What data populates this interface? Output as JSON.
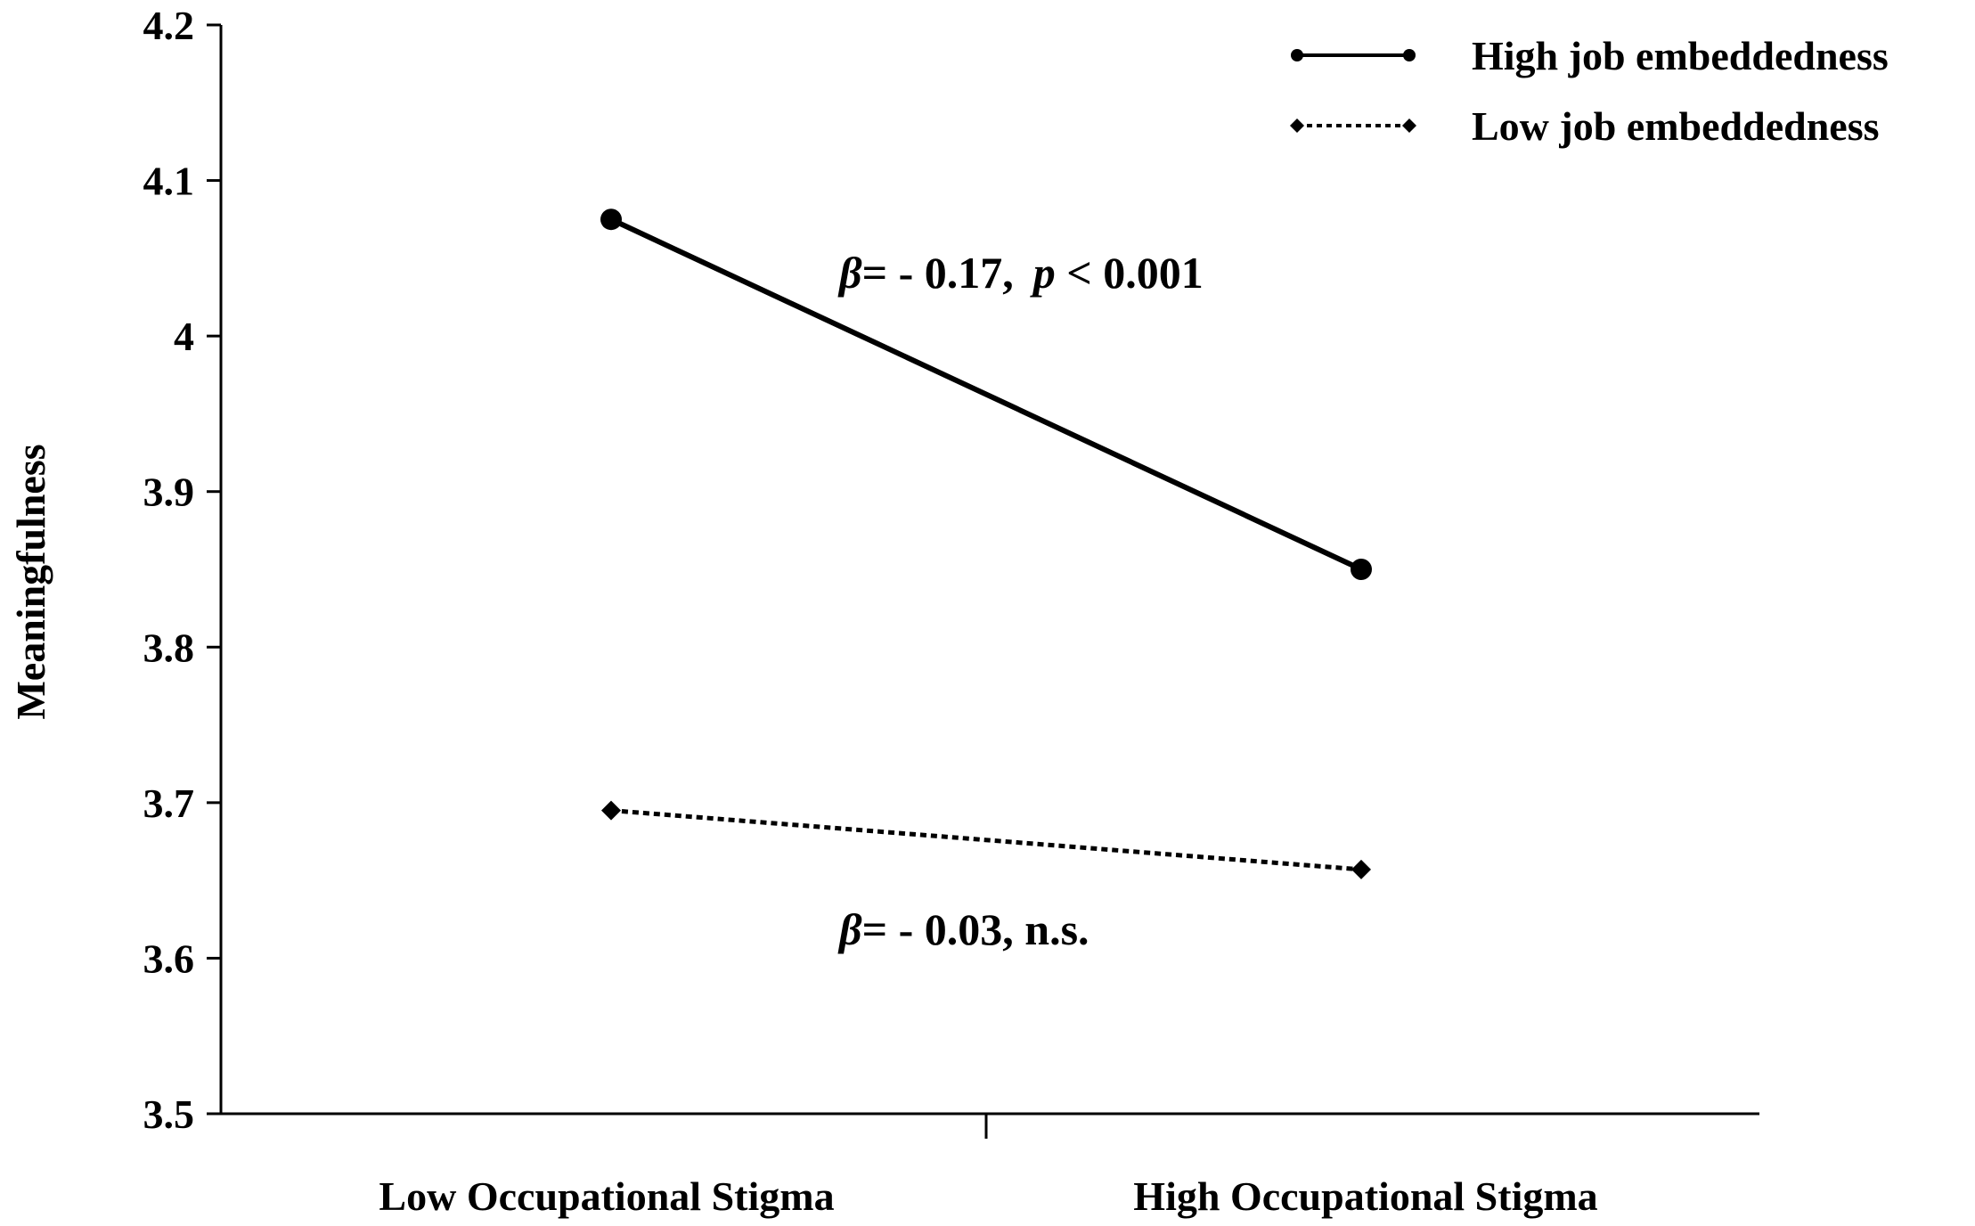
{
  "chart_data": {
    "type": "line",
    "title": "",
    "xlabel": "",
    "ylabel": "Meaningfulness",
    "categories": [
      "Low Occupational Stigma",
      "High Occupational Stigma"
    ],
    "ylim": [
      3.5,
      4.2
    ],
    "yticks": [
      "3.5",
      "3.6",
      "3.7",
      "3.8",
      "3.9",
      "4",
      "4.1",
      "4.2"
    ],
    "grid": false,
    "legend_position": "top-right",
    "series": [
      {
        "name": "High job embeddedness",
        "values": [
          4.075,
          3.85
        ],
        "line_style": "solid",
        "marker": "circle",
        "color": "#000000"
      },
      {
        "name": "Low job embeddedness",
        "values": [
          3.695,
          3.657
        ],
        "line_style": "dotted",
        "marker": "diamond",
        "color": "#000000"
      }
    ],
    "annotations": [
      {
        "series": 0,
        "beta_symbol": "β",
        "text": "= - 0.17,",
        "p_symbol": "p",
        "p_text": " < 0.001"
      },
      {
        "series": 1,
        "beta_symbol": "β",
        "text": "= - 0.03, n.s."
      }
    ]
  }
}
